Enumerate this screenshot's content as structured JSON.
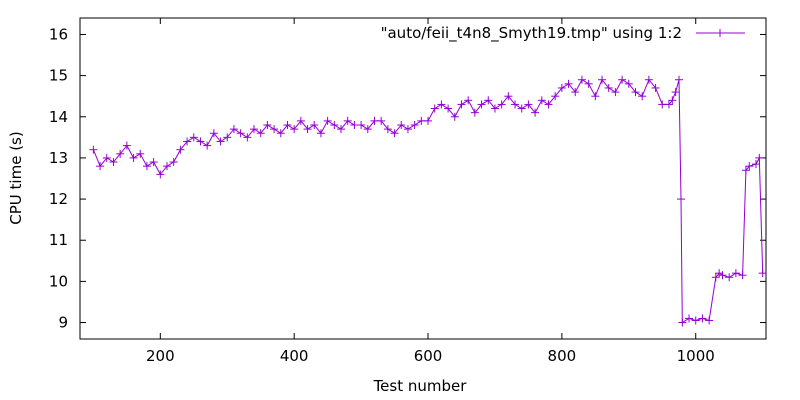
{
  "chart_data": {
    "type": "line",
    "xlabel": "Test number",
    "ylabel": "CPU time (s)",
    "xlim": [
      80,
      1105
    ],
    "ylim": [
      8.6,
      16.4
    ],
    "xticks": [
      200,
      400,
      600,
      800,
      1000
    ],
    "yticks": [
      9,
      10,
      11,
      12,
      13,
      14,
      15,
      16
    ],
    "grid": false,
    "legend_position": "top-right",
    "series": [
      {
        "name": "\"auto/feii_t4n8_Smyth19.tmp\" using 1:2",
        "color": "#9400d3",
        "marker": "plus",
        "x": [
          100,
          110,
          120,
          130,
          140,
          150,
          160,
          170,
          180,
          190,
          200,
          210,
          220,
          230,
          240,
          250,
          260,
          270,
          280,
          290,
          300,
          310,
          320,
          330,
          340,
          350,
          360,
          370,
          380,
          390,
          400,
          410,
          420,
          430,
          440,
          450,
          460,
          470,
          480,
          490,
          500,
          510,
          520,
          530,
          540,
          550,
          560,
          570,
          580,
          590,
          600,
          610,
          620,
          630,
          640,
          650,
          660,
          670,
          680,
          690,
          700,
          710,
          720,
          730,
          740,
          750,
          760,
          770,
          780,
          790,
          800,
          810,
          820,
          830,
          840,
          850,
          860,
          870,
          880,
          890,
          900,
          910,
          920,
          930,
          940,
          950,
          960,
          965,
          970,
          975,
          978,
          980,
          990,
          1000,
          1010,
          1020,
          1030,
          1035,
          1040,
          1050,
          1060,
          1070,
          1075,
          1080,
          1090,
          1095,
          1100
        ],
        "y": [
          13.2,
          12.8,
          13.0,
          12.9,
          13.1,
          13.3,
          13.0,
          13.1,
          12.8,
          12.9,
          12.6,
          12.8,
          12.9,
          13.2,
          13.4,
          13.5,
          13.4,
          13.3,
          13.6,
          13.4,
          13.5,
          13.7,
          13.6,
          13.5,
          13.7,
          13.6,
          13.8,
          13.7,
          13.6,
          13.8,
          13.7,
          13.9,
          13.7,
          13.8,
          13.6,
          13.9,
          13.8,
          13.7,
          13.9,
          13.8,
          13.8,
          13.7,
          13.9,
          13.9,
          13.7,
          13.6,
          13.8,
          13.7,
          13.8,
          13.9,
          13.9,
          14.2,
          14.3,
          14.2,
          14.0,
          14.3,
          14.4,
          14.1,
          14.3,
          14.4,
          14.2,
          14.3,
          14.5,
          14.3,
          14.2,
          14.3,
          14.1,
          14.4,
          14.3,
          14.5,
          14.7,
          14.8,
          14.6,
          14.9,
          14.8,
          14.5,
          14.9,
          14.7,
          14.6,
          14.9,
          14.8,
          14.6,
          14.5,
          14.9,
          14.7,
          14.3,
          14.3,
          14.4,
          14.6,
          14.9,
          12.0,
          9.0,
          9.1,
          9.05,
          9.1,
          9.05,
          10.1,
          10.2,
          10.15,
          10.1,
          10.2,
          10.15,
          12.7,
          12.8,
          12.85,
          13.0,
          10.2
        ]
      }
    ]
  }
}
